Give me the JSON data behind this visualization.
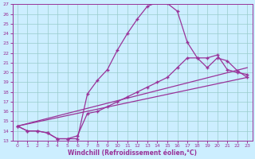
{
  "xlabel": "Windchill (Refroidissement éolien,°C)",
  "bg_color": "#cceeff",
  "line_color": "#993399",
  "grid_color": "#99cccc",
  "xlim": [
    -0.5,
    23.5
  ],
  "ylim": [
    13,
    27
  ],
  "yticks": [
    13,
    14,
    15,
    16,
    17,
    18,
    19,
    20,
    21,
    22,
    23,
    24,
    25,
    26,
    27
  ],
  "xticks": [
    0,
    1,
    2,
    3,
    4,
    5,
    6,
    7,
    8,
    9,
    10,
    11,
    12,
    13,
    14,
    15,
    16,
    17,
    18,
    19,
    20,
    21,
    22,
    23
  ],
  "lines": [
    {
      "x": [
        0,
        1,
        2,
        3,
        4,
        5,
        6,
        7,
        8,
        9,
        10,
        11,
        12,
        13,
        14,
        15,
        16,
        17,
        18,
        19,
        20,
        21,
        22,
        23
      ],
      "y": [
        14.5,
        14.0,
        14.0,
        13.8,
        13.2,
        13.2,
        13.2,
        17.8,
        19.2,
        20.3,
        22.3,
        24.0,
        25.5,
        26.8,
        27.2,
        27.1,
        26.3,
        23.1,
        21.5,
        21.5,
        21.8,
        20.3,
        20.0,
        19.8
      ],
      "marker": "+"
    },
    {
      "x": [
        0,
        1,
        2,
        3,
        4,
        5,
        6,
        7,
        8,
        9,
        10,
        11,
        12,
        13,
        14,
        15,
        16,
        17,
        18,
        19,
        20,
        21,
        22,
        23
      ],
      "y": [
        14.5,
        14.0,
        14.0,
        13.8,
        13.2,
        13.2,
        13.5,
        15.8,
        16.0,
        16.5,
        17.0,
        17.5,
        18.0,
        18.5,
        19.0,
        19.5,
        20.5,
        21.5,
        21.5,
        20.5,
        21.5,
        21.2,
        20.2,
        19.5
      ],
      "marker": "+"
    },
    {
      "x": [
        0,
        23
      ],
      "y": [
        14.5,
        19.5
      ],
      "marker": null
    },
    {
      "x": [
        0,
        23
      ],
      "y": [
        14.5,
        20.5
      ],
      "marker": null
    }
  ]
}
